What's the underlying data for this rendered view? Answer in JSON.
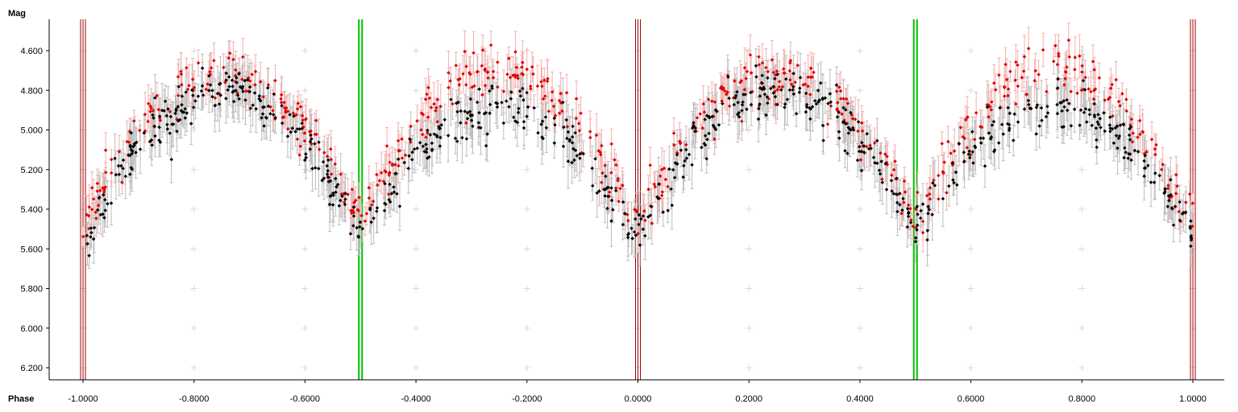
{
  "chart_data": {
    "type": "scatter",
    "title": "",
    "xlabel": "Phase",
    "ylabel": "Mag",
    "xlim": [
      -1.04,
      1.07
    ],
    "ylim": [
      6.3,
      4.45
    ],
    "y_inverted": true,
    "xticks": [
      -1.0,
      -0.8,
      -0.6,
      -0.4,
      -0.2,
      0.0,
      0.2,
      0.4,
      0.6,
      0.8,
      1.0
    ],
    "xtick_labels": [
      "-1.0000",
      "-0.8000",
      "-0.6000",
      "-0.4000",
      "-0.2000",
      "0.0000",
      "0.2000",
      "0.4000",
      "0.6000",
      "0.8000",
      "1.0000"
    ],
    "yticks": [
      4.6,
      4.8,
      5.0,
      5.2,
      5.4,
      5.6,
      5.8,
      6.0,
      6.2
    ],
    "ytick_labels": [
      "4.600",
      "4.800",
      "5.000",
      "5.200",
      "5.400",
      "5.600",
      "5.800",
      "6.000",
      "6.200"
    ],
    "grid": "sparse-crosses",
    "colors": {
      "series_black": "#000000",
      "series_red": "#e00000",
      "errorbar_black": "#bdbdbd",
      "errorbar_red": "#f3b0b0",
      "primary_minimum_lines": "#a00000",
      "secondary_minimum_lines": "#00c000",
      "grid_cross": "#d8d8d8"
    },
    "markers_primary_minimum": [
      -1.0,
      0.0,
      1.0
    ],
    "markers_secondary_minimum": [
      -0.5,
      0.5
    ],
    "light_curve_model": {
      "description_points_phase": [
        0.0,
        0.05,
        0.1,
        0.15,
        0.2,
        0.25,
        0.3,
        0.35,
        0.4,
        0.45,
        0.5,
        0.55,
        0.6,
        0.65,
        0.7,
        0.75,
        0.8,
        0.85,
        0.9,
        0.95,
        1.0
      ],
      "series_black_mag": [
        5.55,
        5.3,
        5.08,
        4.93,
        4.84,
        4.8,
        4.84,
        4.92,
        5.05,
        5.25,
        5.5,
        5.3,
        5.12,
        5.0,
        4.92,
        4.88,
        4.9,
        4.98,
        5.12,
        5.32,
        5.55
      ],
      "series_red_mag": [
        5.48,
        5.22,
        5.0,
        4.84,
        4.74,
        4.7,
        4.74,
        4.84,
        4.98,
        5.18,
        5.45,
        5.18,
        4.98,
        4.82,
        4.74,
        4.7,
        4.74,
        4.84,
        5.0,
        5.22,
        5.48
      ]
    },
    "series": [
      {
        "color": "#000000",
        "points_per_cycle": 380,
        "error_mean": 0.1
      },
      {
        "color": "#e00000",
        "points_per_cycle": 300,
        "error_mean": 0.08
      }
    ]
  }
}
